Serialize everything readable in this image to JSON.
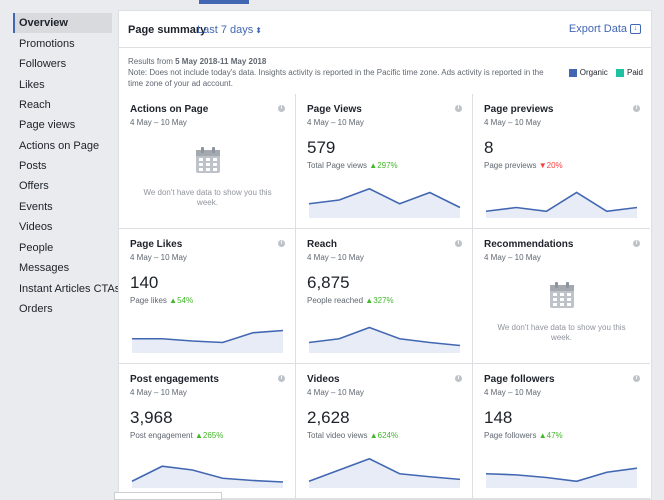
{
  "sidebar": {
    "items": [
      {
        "label": "Overview",
        "active": true
      },
      {
        "label": "Promotions"
      },
      {
        "label": "Followers"
      },
      {
        "label": "Likes"
      },
      {
        "label": "Reach"
      },
      {
        "label": "Page views"
      },
      {
        "label": "Actions on Page"
      },
      {
        "label": "Posts"
      },
      {
        "label": "Offers"
      },
      {
        "label": "Events"
      },
      {
        "label": "Videos"
      },
      {
        "label": "People"
      },
      {
        "label": "Messages"
      },
      {
        "label": "Instant Articles CTAs"
      },
      {
        "label": "Orders"
      }
    ]
  },
  "header": {
    "title": "Page summary",
    "range": "Last 7 days",
    "export": "Export Data"
  },
  "notes": {
    "results_prefix": "Results from ",
    "results_range": "5 May 2018-11 May 2018",
    "note": "Note: Does not include today's data. Insights activity is reported in the Pacific time zone. Ads activity is reported in the time zone of your ad account."
  },
  "legend": {
    "organic": "Organic",
    "paid": "Paid",
    "organic_color": "#4267b2",
    "paid_color": "#20c1a1"
  },
  "cards": [
    {
      "title": "Actions on Page",
      "date": "4 May – 10 May",
      "nodata": "We don't have data to show you this week."
    },
    {
      "title": "Page Views",
      "date": "4 May – 10 May",
      "value": "579",
      "sub": "Total Page views",
      "change": "297%",
      "dir": "up",
      "trend": [
        3,
        4,
        7,
        3,
        6,
        2
      ]
    },
    {
      "title": "Page previews",
      "date": "4 May – 10 May",
      "value": "8",
      "sub": "Page previews",
      "change": "20%",
      "dir": "down",
      "trend": [
        1,
        2,
        1,
        6,
        1,
        2
      ]
    },
    {
      "title": "Page Likes",
      "date": "4 May – 10 May",
      "value": "140",
      "sub": "Page likes",
      "change": "54%",
      "dir": "up",
      "trend": [
        3,
        3,
        2.4,
        2,
        4.6,
        5.2
      ]
    },
    {
      "title": "Reach",
      "date": "4 May – 10 May",
      "value": "6,875",
      "sub": "People reached",
      "change": "327%",
      "dir": "up",
      "trend": [
        2,
        3,
        6,
        3,
        2,
        1.2
      ]
    },
    {
      "title": "Recommendations",
      "date": "4 May – 10 May",
      "nodata": "We don't have data to show you this week."
    },
    {
      "title": "Post engagements",
      "date": "4 May – 10 May",
      "value": "3,968",
      "sub": "Post engagement",
      "change": "265%",
      "dir": "up",
      "trend": [
        1,
        5,
        4,
        1.8,
        1.2,
        0.8
      ]
    },
    {
      "title": "Videos",
      "date": "4 May – 10 May",
      "value": "2,628",
      "sub": "Total video views",
      "change": "624%",
      "dir": "up",
      "trend": [
        1,
        4,
        7,
        3,
        2.2,
        1.5
      ]
    },
    {
      "title": "Page followers",
      "date": "4 May – 10 May",
      "value": "148",
      "sub": "Page followers",
      "change": "47%",
      "dir": "up",
      "trend": [
        3,
        2.7,
        2,
        1,
        3.4,
        4.5
      ]
    }
  ]
}
